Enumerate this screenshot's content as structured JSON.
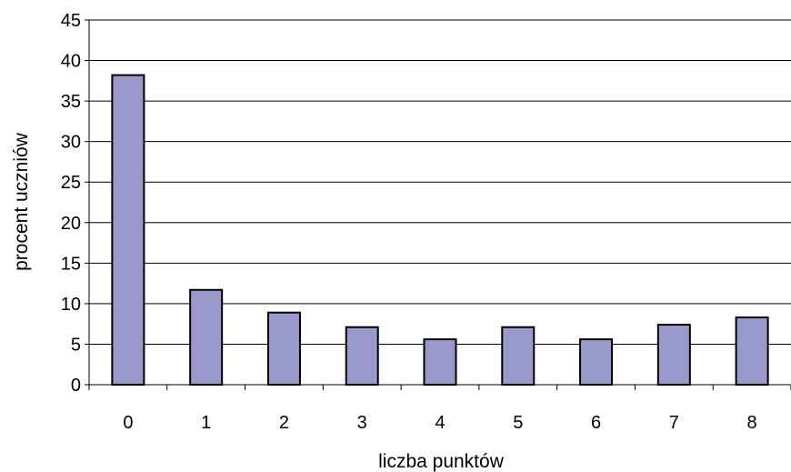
{
  "chart_data": {
    "type": "bar",
    "title": "",
    "xlabel": "liczba punktów",
    "ylabel": "procent uczniów",
    "categories": [
      "0",
      "1",
      "2",
      "3",
      "4",
      "5",
      "6",
      "7",
      "8"
    ],
    "values": [
      38.2,
      11.7,
      8.9,
      7.1,
      5.6,
      7.1,
      5.6,
      7.4,
      8.3
    ],
    "ylim": [
      0,
      45
    ],
    "yticks": [
      0,
      5,
      10,
      15,
      20,
      25,
      30,
      35,
      40,
      45
    ],
    "grid": true,
    "legend": "none",
    "colors": {
      "bar_fill": "#9999cc",
      "bar_stroke": "#000000",
      "grid": "#000000",
      "axis": "#000000"
    }
  }
}
